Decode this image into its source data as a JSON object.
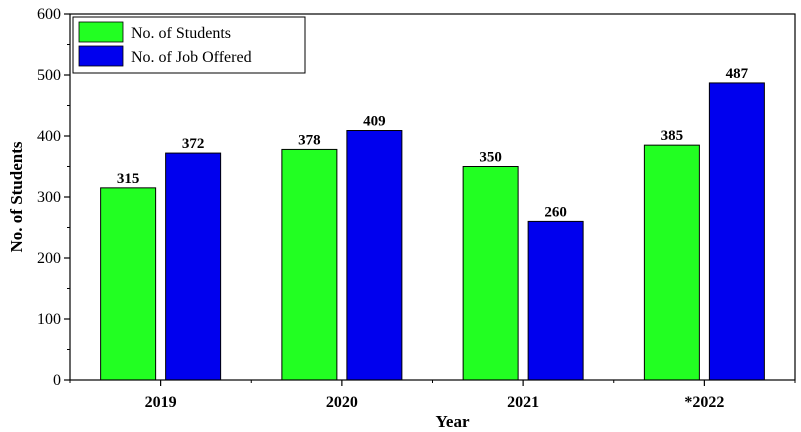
{
  "chart_data": {
    "type": "bar",
    "categories": [
      "2019",
      "2020",
      "2021",
      "*2022"
    ],
    "series": [
      {
        "name": "No. of Students",
        "values": [
          315,
          378,
          350,
          385
        ],
        "color": "#22ff22"
      },
      {
        "name": "No. of Job Offered",
        "values": [
          372,
          409,
          260,
          487
        ],
        "color": "#0000ee"
      }
    ],
    "xlabel": "Year",
    "ylabel": "No. of Students",
    "ylim": [
      0,
      600
    ],
    "yticks": [
      "0",
      "100",
      "200",
      "300",
      "400",
      "500",
      "600"
    ],
    "legend_position": "top-left",
    "grid": false
  }
}
